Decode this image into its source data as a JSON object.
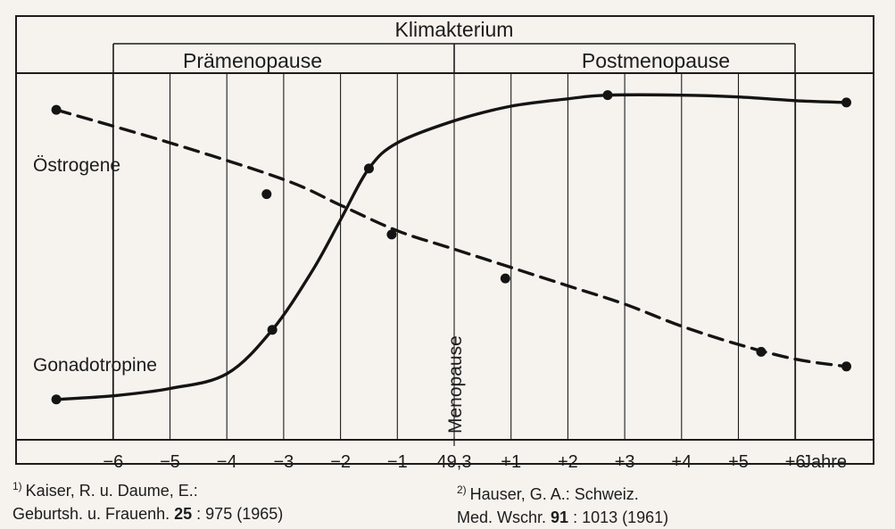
{
  "chart_data": {
    "type": "line",
    "header": {
      "top": "Klimakterium",
      "left": "Prämenopause",
      "right": "Postmenopause"
    },
    "x_ticks": [
      {
        "value": -6,
        "label": "−6"
      },
      {
        "value": -5,
        "label": "−5"
      },
      {
        "value": -4,
        "label": "−4"
      },
      {
        "value": -3,
        "label": "−3"
      },
      {
        "value": -2,
        "label": "−2"
      },
      {
        "value": -1,
        "label": "−1"
      },
      {
        "value": 0,
        "label": "49,3"
      },
      {
        "value": 1,
        "label": "+1"
      },
      {
        "value": 2,
        "label": "+2"
      },
      {
        "value": 3,
        "label": "+3"
      },
      {
        "value": 4,
        "label": "+4"
      },
      {
        "value": 5,
        "label": "+5"
      },
      {
        "value": 6,
        "label": "+6"
      }
    ],
    "x_unit": "Jahre",
    "xlim": [
      -7.2,
      7.0
    ],
    "ylim": [
      0,
      1
    ],
    "menopause_label": "Menopause",
    "grid": "vertical",
    "series": [
      {
        "name": "Östrogene",
        "style": "dashed",
        "points": [
          [
            -7.0,
            0.9
          ],
          [
            -3.3,
            0.67
          ],
          [
            -1.1,
            0.56
          ],
          [
            0.9,
            0.44
          ],
          [
            5.4,
            0.24
          ],
          [
            6.9,
            0.2
          ]
        ],
        "curve": [
          [
            -7.0,
            0.9
          ],
          [
            -5.0,
            0.81
          ],
          [
            -3.0,
            0.71
          ],
          [
            -2.0,
            0.64
          ],
          [
            -1.0,
            0.57
          ],
          [
            0.0,
            0.52
          ],
          [
            1.0,
            0.47
          ],
          [
            2.0,
            0.42
          ],
          [
            3.0,
            0.37
          ],
          [
            4.0,
            0.31
          ],
          [
            5.0,
            0.26
          ],
          [
            6.0,
            0.22
          ],
          [
            6.9,
            0.2
          ]
        ]
      },
      {
        "name": "Gonadotropine",
        "style": "solid",
        "points": [
          [
            -7.0,
            0.11
          ],
          [
            -3.2,
            0.3
          ],
          [
            -1.5,
            0.74
          ],
          [
            2.7,
            0.94
          ],
          [
            6.9,
            0.92
          ]
        ],
        "curve": [
          [
            -7.0,
            0.11
          ],
          [
            -6.0,
            0.12
          ],
          [
            -5.0,
            0.14
          ],
          [
            -4.0,
            0.18
          ],
          [
            -3.2,
            0.3
          ],
          [
            -2.5,
            0.46
          ],
          [
            -2.0,
            0.6
          ],
          [
            -1.5,
            0.74
          ],
          [
            -1.0,
            0.81
          ],
          [
            0.0,
            0.87
          ],
          [
            1.0,
            0.91
          ],
          [
            2.0,
            0.93
          ],
          [
            2.7,
            0.94
          ],
          [
            4.0,
            0.94
          ],
          [
            5.0,
            0.935
          ],
          [
            6.0,
            0.925
          ],
          [
            6.9,
            0.92
          ]
        ]
      }
    ]
  },
  "references": {
    "left": {
      "number": "1)",
      "line1": "Kaiser, R. u. Daume, E.:",
      "line2_before": "Geburtsh. u. Frauenh.",
      "line2_bold": "25",
      "line2_after": ": 975  (1965)"
    },
    "right": {
      "number": "2)",
      "line1": "Hauser, G. A.: Schweiz.",
      "line2_before": "Med. Wschr.",
      "line2_bold": "91",
      "line2_after": ": 1013 (1961)"
    }
  }
}
